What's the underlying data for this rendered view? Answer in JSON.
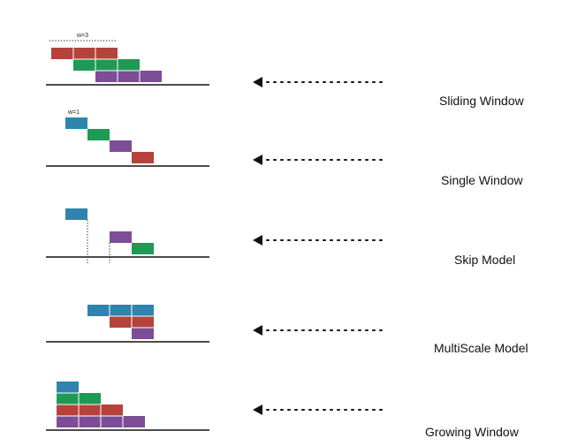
{
  "colors": {
    "red": "#b5433b",
    "green": "#1f9a54",
    "purple": "#7d4d97",
    "blue": "#2f84ad",
    "line": "#111111"
  },
  "panels": [
    {
      "id": "sliding-window",
      "label": "Sliding Window",
      "annotation": "w=3",
      "rows": [
        {
          "color": "red",
          "start": 0,
          "length": 3
        },
        {
          "color": "green",
          "start": 1,
          "length": 3
        },
        {
          "color": "purple",
          "start": 2,
          "length": 3
        }
      ]
    },
    {
      "id": "single-window",
      "label": "Single Window",
      "annotation": "w=1",
      "rows": [
        {
          "color": "blue",
          "start": 0,
          "length": 1
        },
        {
          "color": "green",
          "start": 1,
          "length": 1
        },
        {
          "color": "purple",
          "start": 2,
          "length": 1
        },
        {
          "color": "red",
          "start": 3,
          "length": 1
        }
      ]
    },
    {
      "id": "skip-model",
      "label": "Skip Model",
      "annotation": "",
      "rows": [
        {
          "color": "blue",
          "start": 0,
          "length": 1
        },
        {
          "color": "purple",
          "start": 2,
          "length": 1
        },
        {
          "color": "green",
          "start": 3,
          "length": 1
        }
      ]
    },
    {
      "id": "multiscale-model",
      "label": "MultiScale Model",
      "annotation": "",
      "rows": [
        {
          "color": "blue",
          "start": 1,
          "length": 3
        },
        {
          "color": "red",
          "start": 2,
          "length": 2
        },
        {
          "color": "purple",
          "start": 3,
          "length": 1
        }
      ]
    },
    {
      "id": "growing-window",
      "label": "Growing Window",
      "annotation": "",
      "rows": [
        {
          "color": "blue",
          "start": 0,
          "length": 1
        },
        {
          "color": "green",
          "start": 0,
          "length": 2
        },
        {
          "color": "red",
          "start": 0,
          "length": 3
        },
        {
          "color": "purple",
          "start": 0,
          "length": 4
        }
      ]
    }
  ]
}
